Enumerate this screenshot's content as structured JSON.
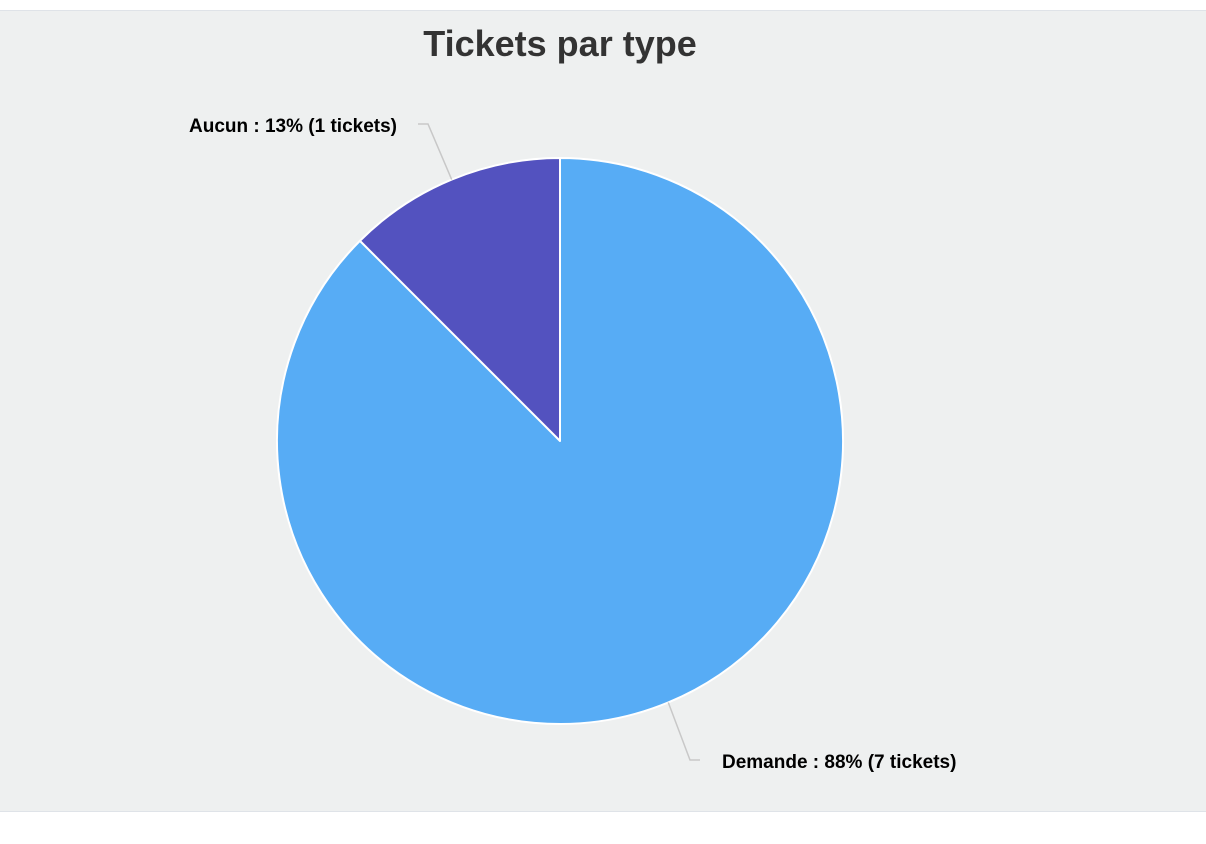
{
  "chart_data": {
    "type": "pie",
    "title": "Tickets par type",
    "slices": [
      {
        "name": "Aucun",
        "percent_label": "13%",
        "count": 1,
        "label": "Aucun : 13% (1 tickets)",
        "color": "#5352bf"
      },
      {
        "name": "Demande",
        "percent_label": "88%",
        "count": 7,
        "label": "Demande : 88% (7 tickets)",
        "color": "#57acf5"
      }
    ],
    "start_angle_deg": -45,
    "background_color": "#eef0f0",
    "border_color": "#ffffff",
    "connector_color": "#c8c8c8"
  }
}
